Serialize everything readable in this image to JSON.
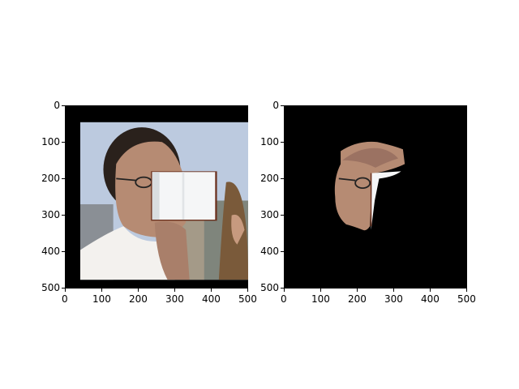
{
  "panels": [
    {
      "id": "left",
      "content": "original photo with a white book-like patch over the lower face",
      "x_ticks": [
        "0",
        "100",
        "200",
        "300",
        "400",
        "500"
      ],
      "y_ticks": [
        "0",
        "100",
        "200",
        "300",
        "400",
        "500"
      ]
    },
    {
      "id": "right",
      "content": "segmentation mask showing only the face region on black",
      "x_ticks": [
        "0",
        "100",
        "200",
        "300",
        "400",
        "500"
      ],
      "y_ticks": [
        "0",
        "100",
        "200",
        "300",
        "400",
        "500"
      ]
    }
  ],
  "colors": {
    "background": "#000000",
    "sky": "#bcc9df",
    "skin": "#b68b73",
    "hair": "#2a211c",
    "shirt": "#f3f1ee",
    "patch_border": "#6a2f1c"
  }
}
